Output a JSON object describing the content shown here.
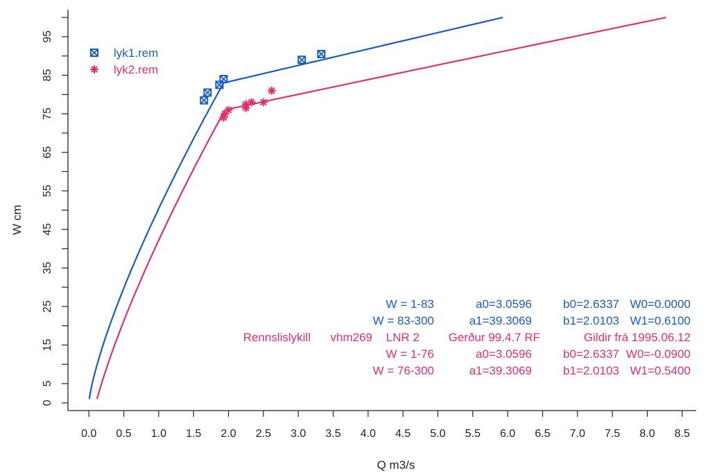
{
  "chart_data": {
    "type": "line",
    "title": "",
    "xlabel": "Q m3/s",
    "ylabel": "W cm",
    "xlim": [
      -0.3,
      8.7
    ],
    "ylim": [
      -2,
      102
    ],
    "x_ticks": [
      "0.0",
      "0.5",
      "1.0",
      "1.5",
      "2.0",
      "2.5",
      "3.0",
      "3.5",
      "4.0",
      "4.5",
      "5.0",
      "5.5",
      "6.0",
      "6.5",
      "7.0",
      "7.5",
      "8.0",
      "8.5"
    ],
    "y_ticks": [
      "0",
      "5",
      "15",
      "25",
      "35",
      "45",
      "55",
      "65",
      "75",
      "85",
      "95"
    ],
    "y_minor_ticks": [
      10,
      20,
      30,
      40,
      50,
      60,
      70,
      80,
      90,
      100
    ],
    "grid": false,
    "legend_position": "top-left",
    "colors": {
      "series1": "#1a5bbf",
      "series2": "#e0306a",
      "axis": "#222222"
    },
    "series": [
      {
        "name": "lyk1.rem",
        "color": "#1a5bbf",
        "marker": "boxed-x",
        "curve_params": {
          "a0": 3.0596,
          "b0": 2.6337,
          "W0": 0.0,
          "a1": 39.3069,
          "b1": 2.0103,
          "W1": 0.61,
          "break": 83,
          "w_max": 100
        },
        "points": [
          {
            "x": 1.65,
            "y": 78.5
          },
          {
            "x": 1.7,
            "y": 80.5
          },
          {
            "x": 1.87,
            "y": 82.5
          },
          {
            "x": 1.93,
            "y": 84.0
          },
          {
            "x": 3.05,
            "y": 89.0
          },
          {
            "x": 3.33,
            "y": 90.5
          }
        ]
      },
      {
        "name": "lyk2.rem",
        "color": "#e0306a",
        "marker": "asterisk",
        "curve_params": {
          "a0": 3.0596,
          "b0": 2.6337,
          "W0": -0.09,
          "a1": 39.3069,
          "b1": 2.0103,
          "W1": 0.54,
          "break": 76,
          "w_max": 100
        },
        "points": [
          {
            "x": 1.93,
            "y": 74.0
          },
          {
            "x": 1.95,
            "y": 75.0
          },
          {
            "x": 2.0,
            "y": 76.0
          },
          {
            "x": 2.25,
            "y": 76.5
          },
          {
            "x": 2.25,
            "y": 77.5
          },
          {
            "x": 2.33,
            "y": 78.0
          },
          {
            "x": 2.5,
            "y": 78.0
          },
          {
            "x": 2.62,
            "y": 81.0
          }
        ]
      }
    ],
    "annotations": [
      {
        "line": "blue",
        "cells": [
          "W = 1-83",
          "a0=3.0596",
          "b0=2.6337",
          "W0=0.0000"
        ]
      },
      {
        "line": "blue",
        "cells": [
          "W = 83-300",
          "a1=39.3069",
          "b1=2.0103",
          "W1=0.6100"
        ]
      },
      {
        "line": "pink",
        "cells": [
          "Rennslislykill",
          "vhm269",
          "LNR 2",
          "Gerður 99.4.7 RF",
          "Gildir frá 1995.06.12"
        ]
      },
      {
        "line": "pink",
        "cells": [
          "W = 1-76",
          "a0=3.0596",
          "b0=2.6337",
          "W0=-0.0900"
        ]
      },
      {
        "line": "pink",
        "cells": [
          "W = 76-300",
          "a1=39.3069",
          "b1=2.0103",
          "W1=0.5400"
        ]
      }
    ]
  }
}
